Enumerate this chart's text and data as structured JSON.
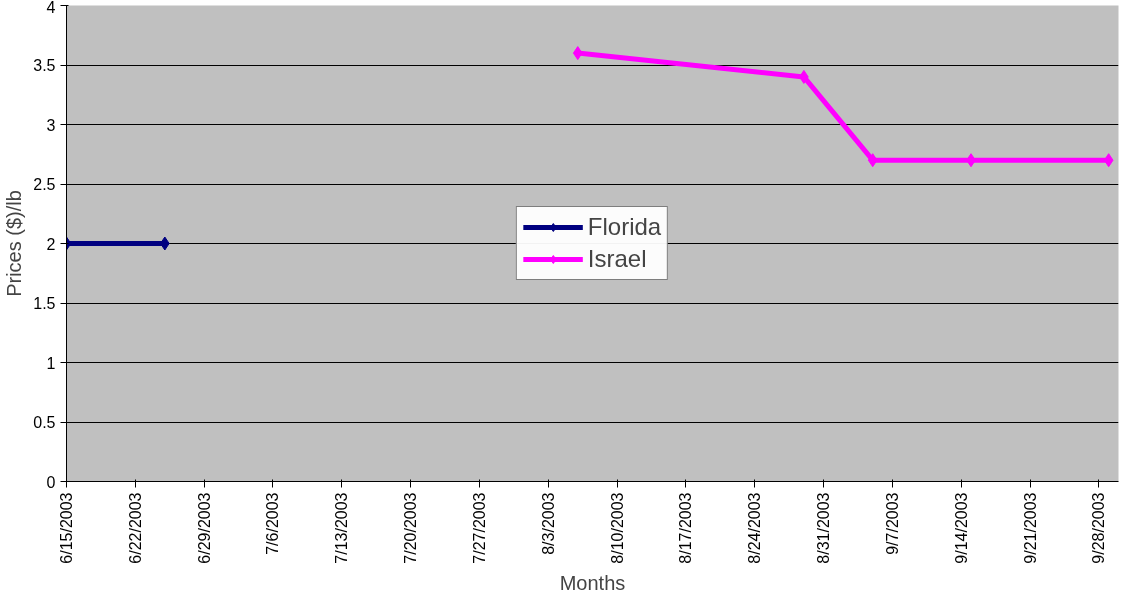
{
  "chart_data": {
    "type": "line",
    "xlabel": "Months",
    "ylabel": "Prices ($)/lb",
    "xlim": [
      "2003-06-15",
      "2003-09-30"
    ],
    "xticks": [
      {
        "value": "2003-06-15",
        "label": "6/15/2003"
      },
      {
        "value": "2003-06-22",
        "label": "6/22/2003"
      },
      {
        "value": "2003-06-29",
        "label": "6/29/2003"
      },
      {
        "value": "2003-07-06",
        "label": "7/6/2003"
      },
      {
        "value": "2003-07-13",
        "label": "7/13/2003"
      },
      {
        "value": "2003-07-20",
        "label": "7/20/2003"
      },
      {
        "value": "2003-07-27",
        "label": "7/27/2003"
      },
      {
        "value": "2003-08-03",
        "label": "8/3/2003"
      },
      {
        "value": "2003-08-10",
        "label": "8/10/2003"
      },
      {
        "value": "2003-08-17",
        "label": "8/17/2003"
      },
      {
        "value": "2003-08-24",
        "label": "8/24/2003"
      },
      {
        "value": "2003-08-31",
        "label": "8/31/2003"
      },
      {
        "value": "2003-09-07",
        "label": "9/7/2003"
      },
      {
        "value": "2003-09-14",
        "label": "9/14/2003"
      },
      {
        "value": "2003-09-21",
        "label": "9/21/2003"
      },
      {
        "value": "2003-09-28",
        "label": "9/28/2003"
      }
    ],
    "ylim": [
      0,
      4
    ],
    "yticks": [
      0,
      0.5,
      1,
      1.5,
      2,
      2.5,
      3,
      3.5,
      4
    ],
    "grid": "y",
    "legend": "center",
    "marker": "diamond",
    "line_style": "solid",
    "series": [
      {
        "name": "Florida",
        "color": "#000080",
        "x": [
          "2003-06-15",
          "2003-06-25"
        ],
        "values": [
          2,
          2
        ]
      },
      {
        "name": "Israel",
        "color": "#ff00ff",
        "x": [
          "2003-08-06",
          "2003-08-29",
          "2003-09-05",
          "2003-09-15",
          "2003-09-29"
        ],
        "values": [
          3.6,
          3.4,
          2.7,
          2.7,
          2.7
        ]
      }
    ]
  }
}
